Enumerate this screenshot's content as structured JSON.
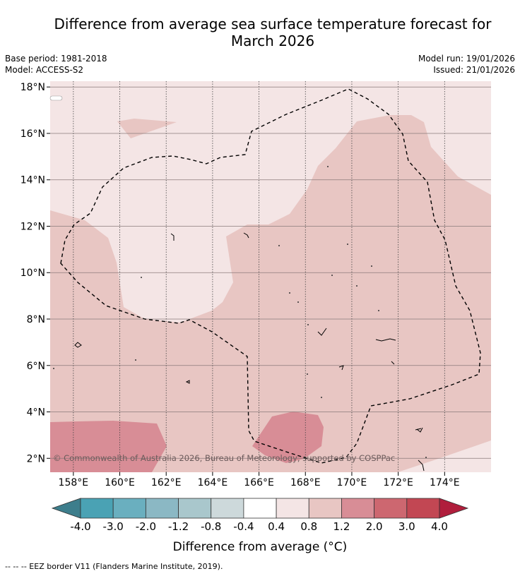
{
  "title": {
    "line1": "Difference from average sea surface temperature forecast for",
    "line2": "March 2026"
  },
  "meta": {
    "base_period": "Base period: 1981-2018",
    "model": "Model: ACCESS-S2",
    "model_run": "Model run: 19/01/2026",
    "issued": "Issued: 21/01/2026"
  },
  "map": {
    "lon_labels": [
      "158°E",
      "160°E",
      "162°E",
      "164°E",
      "166°E",
      "168°E",
      "170°E",
      "172°E",
      "174°E"
    ],
    "lon_values": [
      158,
      160,
      162,
      164,
      166,
      168,
      170,
      172,
      174
    ],
    "lat_labels": [
      "18°N",
      "16°N",
      "14°N",
      "12°N",
      "10°N",
      "8°N",
      "6°N",
      "4°N",
      "2°N"
    ],
    "lat_values": [
      18,
      16,
      14,
      12,
      10,
      8,
      6,
      4,
      2
    ],
    "lon_range": [
      157,
      176
    ],
    "lat_range": [
      1.4,
      18.25
    ],
    "copyright": "© Commonwealth of Australia 2026, Bureau of Meteorology, supported by COSPPac"
  },
  "colorbar": {
    "labels": [
      "-4.0",
      "-3.0",
      "-2.0",
      "-1.2",
      "-0.8",
      "-0.4",
      "0.4",
      "0.8",
      "1.2",
      "2.0",
      "3.0",
      "4.0"
    ],
    "colors": [
      "#3d7e8c",
      "#4aa2b4",
      "#6aafbf",
      "#8bb8c4",
      "#a9c7cc",
      "#cdd9db",
      "#ffffff",
      "#f4e5e5",
      "#e8c6c3",
      "#d88d96",
      "#cd6770",
      "#c24753",
      "#b01e3c"
    ],
    "label": "Difference from average (°C)",
    "degree_symbol": "°"
  },
  "footer": {
    "legend": "--  --  -- EEZ border V11 (Flanders Marine Institute, 2019)."
  }
}
